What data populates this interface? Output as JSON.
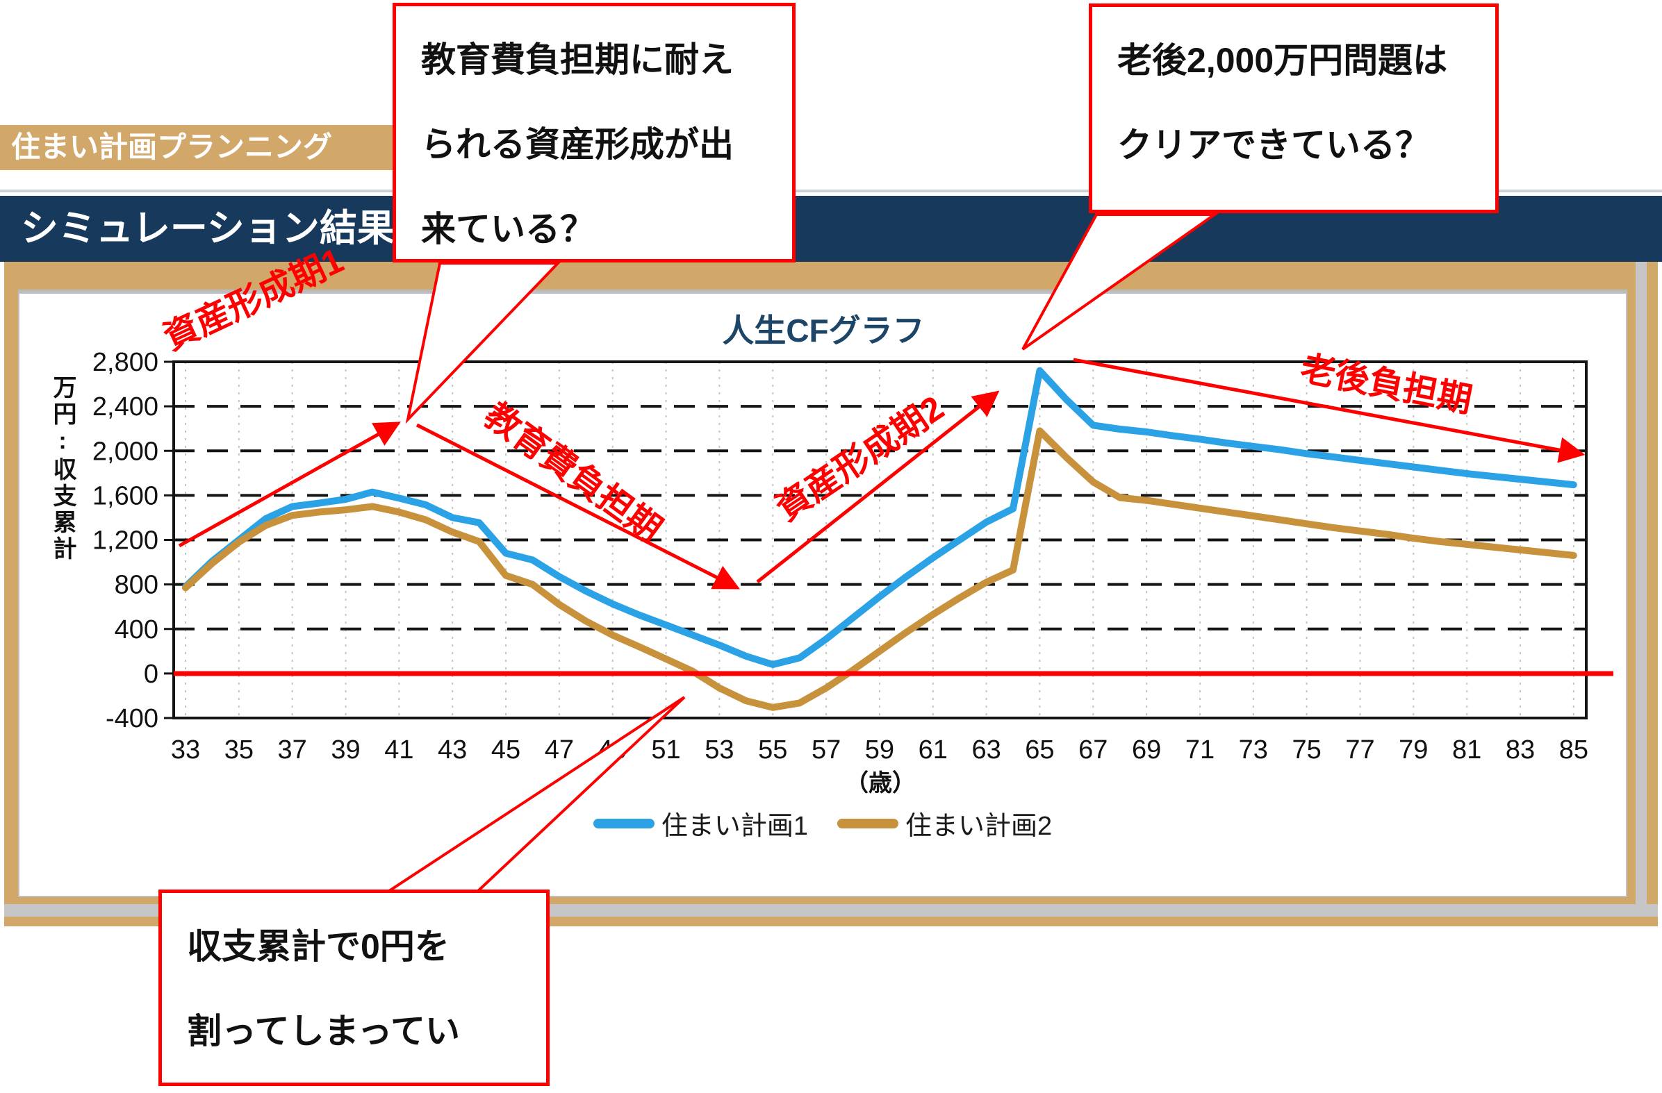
{
  "header": {
    "app_title": "住まい計画プランニング",
    "section_title": "シミュレーション結果"
  },
  "callouts": {
    "education": {
      "lines": [
        "教育費負担期に耐え",
        "られる資産形成が出",
        "来ている？"
      ]
    },
    "retirement": {
      "lines": [
        "老後2,000万円問題は",
        "クリアできている？"
      ]
    },
    "deficit": {
      "lines": [
        "収支累計で0円を",
        "割ってしまってい"
      ]
    }
  },
  "chart_data": {
    "type": "line",
    "title": "人生CFグラフ",
    "xlabel": "（歳）",
    "ylabel": "万円:収支累計",
    "x_range": [
      33,
      85
    ],
    "x_ticks": [
      33,
      35,
      37,
      39,
      41,
      43,
      45,
      47,
      49,
      51,
      53,
      55,
      57,
      59,
      61,
      63,
      65,
      67,
      69,
      71,
      73,
      75,
      77,
      79,
      81,
      83,
      85
    ],
    "ylim": [
      -400,
      2800
    ],
    "y_ticks": [
      {
        "v": 2800,
        "label": "2,800"
      },
      {
        "v": 2400,
        "label": "2,400"
      },
      {
        "v": 2000,
        "label": "2,000"
      },
      {
        "v": 1600,
        "label": "1,600"
      },
      {
        "v": 1200,
        "label": "1,200"
      },
      {
        "v": 800,
        "label": "800"
      },
      {
        "v": 400,
        "label": "400"
      },
      {
        "v": 0,
        "label": "0"
      },
      {
        "v": -400,
        "label": "-400"
      }
    ],
    "grid": true,
    "legend_position": "bottom",
    "zero_baseline": {
      "value": 0,
      "color": "#FF0000"
    },
    "series": [
      {
        "name": "住まい計画1",
        "color": "#2BA2E5",
        "values": [
          780,
          1010,
          1200,
          1390,
          1500,
          1530,
          1565,
          1630,
          1575,
          1515,
          1400,
          1355,
          1080,
          1020,
          870,
          740,
          625,
          525,
          435,
          345,
          255,
          155,
          80,
          140,
          310,
          500,
          690,
          870,
          1040,
          1200,
          1360,
          1480,
          2720,
          2460,
          2230,
          2195,
          2170,
          2135,
          2105,
          2070,
          2040,
          2010,
          1975,
          1945,
          1915,
          1885,
          1855,
          1825,
          1795,
          1770,
          1745,
          1720,
          1695
        ]
      },
      {
        "name": "住まい計画2",
        "color": "#C8913C",
        "values": [
          770,
          990,
          1180,
          1330,
          1420,
          1450,
          1470,
          1500,
          1450,
          1380,
          1270,
          1185,
          880,
          800,
          620,
          470,
          345,
          240,
          130,
          20,
          -130,
          -245,
          -305,
          -265,
          -130,
          30,
          200,
          370,
          530,
          680,
          820,
          930,
          2180,
          1940,
          1720,
          1580,
          1555,
          1520,
          1485,
          1450,
          1415,
          1380,
          1345,
          1310,
          1280,
          1250,
          1215,
          1185,
          1160,
          1135,
          1110,
          1085,
          1060
        ]
      }
    ],
    "annotations": [
      {
        "id": "asset-phase-1",
        "text": "資産形成期1"
      },
      {
        "id": "education-burden",
        "text": "教育費負担期"
      },
      {
        "id": "asset-phase-2",
        "text": "資産形成期2"
      },
      {
        "id": "retirement-burden",
        "text": "老後負担期"
      }
    ]
  },
  "colors": {
    "brand_tan": "#D2A76A",
    "brand_navy": "#173A5C",
    "title_navy": "#1D4568",
    "annotation_red": "#FF0000",
    "series1_blue": "#2BA2E5",
    "series2_tan": "#C8913C"
  }
}
